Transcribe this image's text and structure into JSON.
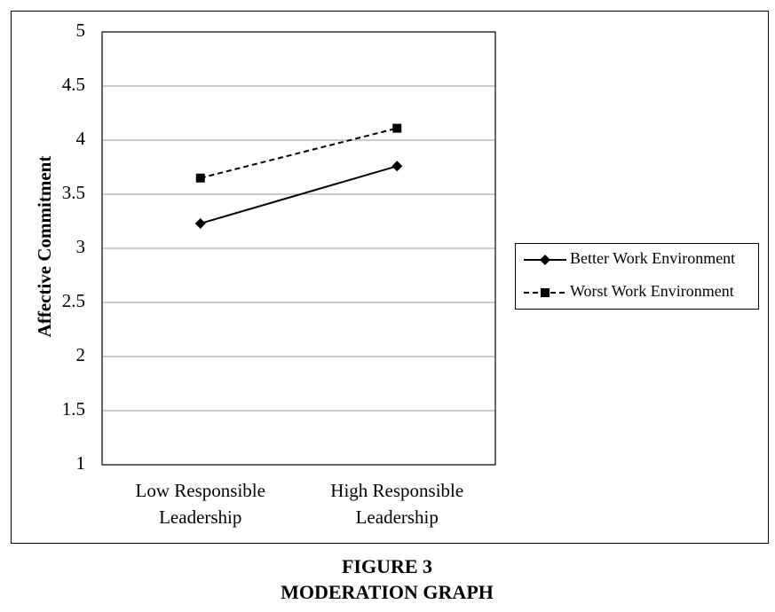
{
  "chart_data": {
    "type": "line",
    "figure_label": "FIGURE 3",
    "title": "MODERATION GRAPH",
    "y_label": "Affective Commitment",
    "categories": [
      "Low Responsible Leadership",
      "High Responsible Leadership"
    ],
    "series": [
      {
        "name": "Better Work Environment",
        "color": "#000000",
        "marker": "diamond",
        "dashed": false,
        "values": [
          3.23,
          3.76
        ]
      },
      {
        "name": "Worst Work Environment",
        "color": "#000000",
        "marker": "square",
        "dashed": true,
        "values": [
          3.65,
          4.11
        ]
      }
    ],
    "ylim": [
      1,
      5
    ],
    "yticks": [
      1,
      1.5,
      2,
      2.5,
      3,
      3.5,
      4,
      4.5,
      5
    ],
    "grid": true,
    "legend": "right"
  }
}
